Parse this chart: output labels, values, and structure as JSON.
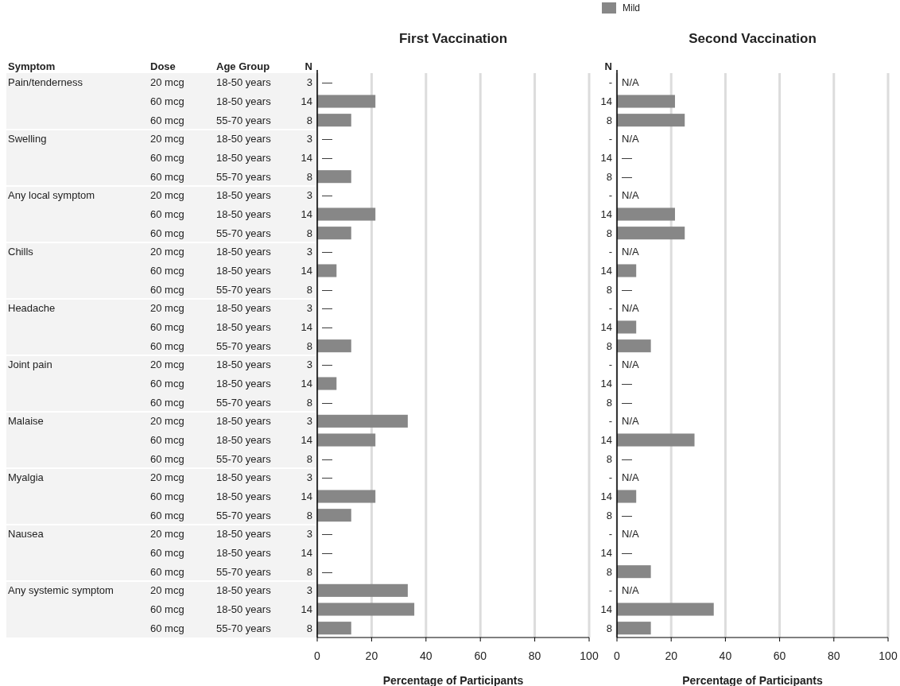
{
  "chart_data": [
    {
      "type": "bar",
      "orientation": "horizontal",
      "title": "First Vaccination",
      "xlabel": "Percentage of Participants",
      "ylabel": "Symptom\tDose\tAge Group\tN",
      "categories": [
        "Pain/tenderness\t20 mcg\t18-50 years\t3",
        "\t60 mcg\t18-50 years\t14",
        "\t60 mcg\t55-70 years\t8",
        "Swelling\t20 mcg\t18-50 years\t3",
        "\t60 mcg\t18-50 years\t14",
        "\t60 mcg\t55-70 years\t8",
        "Any local symptom\t20 mcg\t18-50 years\t3",
        "\t60 mcg\t18-50 years\t14",
        "\t60 mcg\t55-70 years\t8",
        "Chills\t20 mcg\t18-50 years\t3",
        "\t60 mcg\t18-50 years\t14",
        "\t60 mcg\t55-70 years\t8",
        "Headache\t20 mcg\t18-50 years\t3",
        "\t60 mcg\t18-50 years\t14",
        "\t60 mcg\t55-70 years\t8",
        "Joint pain\t20 mcg\t18-50 years\t3",
        "\t60 mcg\t18-50 years\t14",
        "\t60 mcg\t55-70 years\t8",
        "Malaise\t20 mcg\t18-50 years\t3",
        "\t60 mcg\t18-50 years\t14",
        "\t60 mcg\t55-70 years\t8",
        "Myalgia\t20 mcg\t18-50 years\t3",
        "\t60 mcg\t18-50 years\t14",
        "\t60 mcg\t55-70 years\t8",
        "Nausea\t20 mcg\t18-50 years\t3",
        "\t60 mcg\t18-50 years\t14",
        "\t60 mcg\t55-70 years\t8",
        "Any systemic symptom\t20 mcg\t18-50 years\t3",
        "\t60 mcg\t18-50 years\t14",
        "\t60 mcg\t55-70 years\t8"
      ],
      "series": [
        {
          "color": "#878787",
          "values": [
            0,
            21.4,
            12.5,
            0,
            0,
            12.5,
            0,
            21.4,
            12.5,
            0,
            7.1,
            0,
            0,
            0,
            12.5,
            0,
            7.1,
            0,
            33.3,
            21.4,
            0,
            0,
            21.4,
            12.5,
            0,
            0,
            0,
            33.3,
            35.7,
            12.5
          ],
          "value_labels": [
            "—",
            null,
            null,
            "—",
            "—",
            null,
            "—",
            null,
            null,
            "—",
            null,
            "—",
            "—",
            "—",
            null,
            "—",
            null,
            "—",
            null,
            null,
            "—",
            "—",
            null,
            null,
            "—",
            "—",
            "—",
            null,
            null,
            null
          ]
        }
      ],
      "xlim": [
        0,
        100
      ],
      "xticks": [
        0,
        20,
        40,
        60,
        80,
        100
      ],
      "grid": "x"
    },
    {
      "type": "bar",
      "orientation": "horizontal",
      "title": "Second Vaccination",
      "xlabel": "Percentage of Participants",
      "ylabel": "N",
      "legend": "top",
      "categories": [
        "-",
        "14",
        "8",
        "-",
        "14",
        "8",
        "-",
        "14",
        "8",
        "-",
        "14",
        "8",
        "-",
        "14",
        "8",
        "-",
        "14",
        "8",
        "-",
        "14",
        "8",
        "-",
        "14",
        "8",
        "-",
        "14",
        "8",
        "-",
        "14",
        "8"
      ],
      "series": [
        {
          "name": "Mild",
          "color": "#878787",
          "values": [
            null,
            21.4,
            25,
            null,
            0,
            0,
            null,
            21.4,
            25,
            null,
            7.1,
            0,
            null,
            7.1,
            12.5,
            null,
            0,
            0,
            null,
            28.6,
            0,
            null,
            7.1,
            0,
            null,
            0,
            12.5,
            null,
            35.7,
            12.5
          ],
          "value_labels": [
            "N/A",
            null,
            null,
            "N/A",
            "—",
            "—",
            "N/A",
            null,
            null,
            "N/A",
            null,
            "—",
            "N/A",
            null,
            null,
            "N/A",
            "—",
            "—",
            "N/A",
            null,
            "—",
            "N/A",
            null,
            "—",
            "N/A",
            "—",
            null,
            "N/A",
            null,
            null
          ]
        }
      ],
      "xlim": [
        0,
        100
      ],
      "xticks": [
        0,
        20,
        40,
        60,
        80,
        100
      ],
      "grid": "x"
    }
  ]
}
